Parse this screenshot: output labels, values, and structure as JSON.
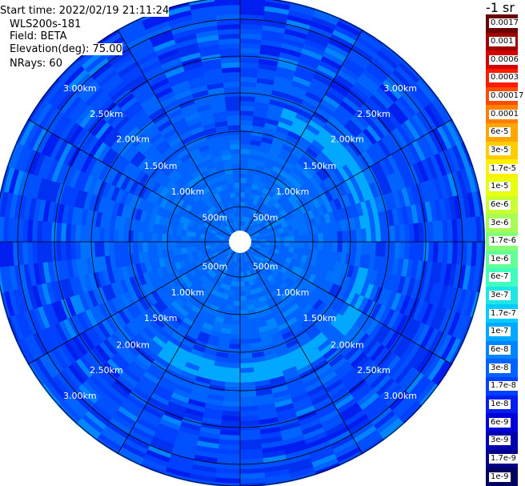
{
  "header": {
    "start_time": "Start time: 2022/02/19 21:11:24",
    "instrument": "WLS200s-181",
    "field": "Field: BETA",
    "elevation": "Elevation(deg): 75.00",
    "nrays": "NRays: 60"
  },
  "colorbar": {
    "unit_label": "-1 sr",
    "labels": [
      "0.0017",
      "0.001",
      "0.0006",
      "0.0003",
      "0.00017",
      "0.0001",
      "6e-5",
      "3e-5",
      "1.7e-5",
      "1e-5",
      "6e-6",
      "3e-6",
      "1.7e-6",
      "1e-6",
      "6e-7",
      "3e-7",
      "1.7e-7",
      "1e-7",
      "6e-8",
      "3e-8",
      "1.7e-8",
      "1e-8",
      "6e-9",
      "3e-9",
      "1.7e-9",
      "1e-9"
    ],
    "colors": [
      "#6b0000",
      "#a00000",
      "#d40000",
      "#ff1a00",
      "#ff4d00",
      "#ff8000",
      "#ffa600",
      "#ffcc00",
      "#fff000",
      "#e8ff10",
      "#c8ff30",
      "#a6ff52",
      "#85ff75",
      "#62ff98",
      "#3fffbf",
      "#1fe6e6",
      "#00ccff",
      "#00a8ff",
      "#0085ff",
      "#0062ff",
      "#0040ff",
      "#001ef0",
      "#0000d8",
      "#0000b0",
      "#000088",
      "#000060"
    ]
  },
  "range_rings": {
    "labels": [
      "500m",
      "1.00km",
      "1.50km",
      "2.00km",
      "2.50km",
      "3.00km"
    ]
  }
}
